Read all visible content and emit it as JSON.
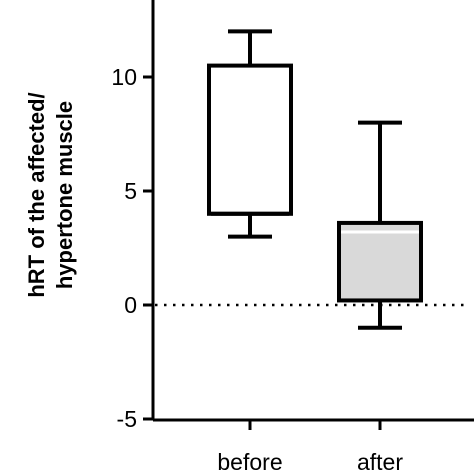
{
  "chart_data": {
    "type": "box",
    "title": "",
    "ylabel_lines": [
      "hRT of the affected/",
      "hypertone muscle"
    ],
    "xlabel": "",
    "ylim": [
      -5,
      13
    ],
    "yticks": [
      -5,
      0,
      5,
      10
    ],
    "ytick_labels": [
      "-5",
      "0",
      "5",
      "10"
    ],
    "reference_line": {
      "y": 0,
      "style": "dotted"
    },
    "categories": [
      "before",
      "after"
    ],
    "boxes": [
      {
        "category": "before",
        "min": 3,
        "q1": 4,
        "median": 4,
        "q3": 10.5,
        "max": 12,
        "fill": "#ffffff"
      },
      {
        "category": "after",
        "min": -1,
        "q1": 0.2,
        "median": 3.2,
        "q3": 3.6,
        "max": 8,
        "fill": "#d9d9d9",
        "median_color": "#ffffff"
      }
    ],
    "colors": {
      "stroke": "#000000"
    }
  }
}
